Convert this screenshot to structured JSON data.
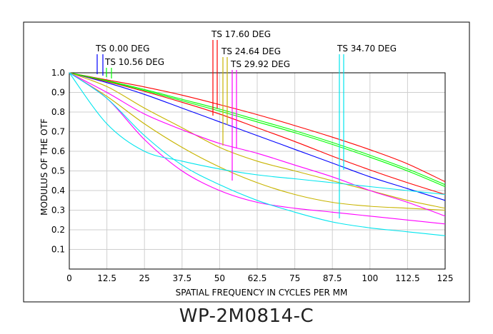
{
  "caption": "WP-2M0814-C",
  "chart_data": {
    "type": "line",
    "title": "",
    "xlabel": "SPATIAL FREQUENCY IN CYCLES PER MM",
    "ylabel": "MODULUS OF THE OTF",
    "xlim": [
      0,
      125
    ],
    "ylim": [
      0,
      1.0
    ],
    "xticks": [
      0,
      12.5,
      25,
      37.5,
      50,
      62.5,
      75,
      87.5,
      100,
      112.5,
      125
    ],
    "xtick_labels": [
      "0",
      "12.5",
      "25",
      "37.5",
      "50",
      "62.5",
      "75",
      "87.5",
      "100",
      "112.5",
      "125"
    ],
    "yticks": [
      0.1,
      0.2,
      0.3,
      0.4,
      0.5,
      0.6,
      0.7,
      0.8,
      0.9,
      1.0
    ],
    "ytick_labels": [
      "0.1",
      "0.2",
      "0.3",
      "0.4",
      "0.5",
      "0.6",
      "0.7",
      "0.8",
      "0.9",
      "1.0"
    ],
    "grid": true,
    "x": [
      0,
      12.5,
      25,
      37.5,
      50,
      62.5,
      75,
      87.5,
      100,
      112.5,
      125
    ],
    "series": [
      {
        "color": "#0000ff",
        "values": [
          1.0,
          0.95,
          0.89,
          0.82,
          0.75,
          0.68,
          0.61,
          0.54,
          0.47,
          0.41,
          0.35
        ]
      },
      {
        "color": "#ff0000",
        "values": [
          1.0,
          0.964,
          0.928,
          0.886,
          0.838,
          0.787,
          0.731,
          0.672,
          0.608,
          0.536,
          0.445
        ]
      },
      {
        "color": "#ff0000",
        "values": [
          1.0,
          0.955,
          0.905,
          0.85,
          0.79,
          0.72,
          0.65,
          0.575,
          0.505,
          0.44,
          0.38
        ]
      },
      {
        "color": "#00ff00",
        "values": [
          1.0,
          0.96,
          0.915,
          0.865,
          0.815,
          0.76,
          0.705,
          0.645,
          0.58,
          0.51,
          0.43
        ]
      },
      {
        "color": "#00ff00",
        "values": [
          1.0,
          0.958,
          0.91,
          0.858,
          0.805,
          0.75,
          0.695,
          0.635,
          0.57,
          0.5,
          0.42
        ]
      },
      {
        "color": "#c8b400",
        "values": [
          1.0,
          0.93,
          0.82,
          0.72,
          0.62,
          0.55,
          0.5,
          0.45,
          0.4,
          0.35,
          0.31
        ]
      },
      {
        "color": "#c8b400",
        "values": [
          1.0,
          0.88,
          0.74,
          0.62,
          0.52,
          0.44,
          0.38,
          0.34,
          0.32,
          0.31,
          0.3
        ]
      },
      {
        "color": "#ff00ff",
        "values": [
          1.0,
          0.9,
          0.79,
          0.71,
          0.64,
          0.59,
          0.53,
          0.47,
          0.4,
          0.34,
          0.27
        ]
      },
      {
        "color": "#ff00ff",
        "values": [
          1.0,
          0.87,
          0.66,
          0.5,
          0.4,
          0.34,
          0.31,
          0.29,
          0.27,
          0.25,
          0.23
        ]
      },
      {
        "color": "#00e5ee",
        "values": [
          1.0,
          0.87,
          0.68,
          0.53,
          0.43,
          0.35,
          0.29,
          0.24,
          0.21,
          0.19,
          0.17
        ]
      },
      {
        "color": "#00e5ee",
        "values": [
          1.0,
          0.74,
          0.6,
          0.55,
          0.51,
          0.48,
          0.46,
          0.44,
          0.42,
          0.4,
          0.38
        ]
      }
    ],
    "annotations": [
      {
        "text": "TS  0.00 DEG",
        "color": "#0000ff",
        "x": 10
      },
      {
        "text": "TS  10.56 DEG",
        "color": "#00ff00",
        "x": 13
      },
      {
        "text": "TS  17.60 DEG",
        "color": "#ff0000",
        "x": 48
      },
      {
        "text": "TS  24.64 DEG",
        "color": "#c8b400",
        "x": 52
      },
      {
        "text": "TS  29.92 DEG",
        "color": "#ff00ff",
        "x": 56
      },
      {
        "text": "TS  34.70 DEG",
        "color": "#00e5ee",
        "x": 90.5
      }
    ]
  }
}
